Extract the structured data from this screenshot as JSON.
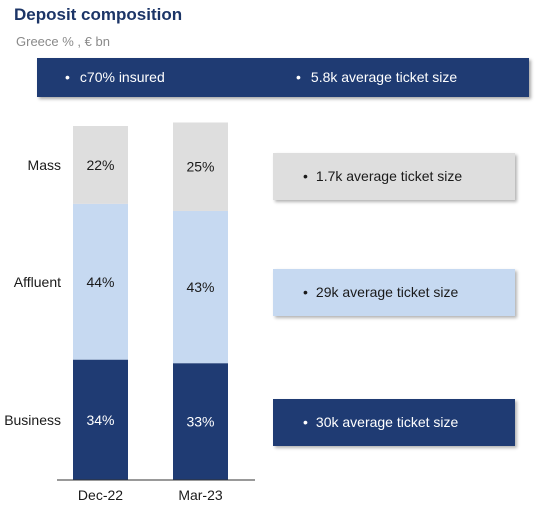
{
  "header": {
    "title": "Deposit composition",
    "subtitle": "Greece % , € bn"
  },
  "banner": {
    "items": [
      "c70% insured",
      "5.8k average ticket size"
    ]
  },
  "callouts": [
    {
      "label": "1.7k average ticket size",
      "color": "#dedede"
    },
    {
      "label": "29k average ticket size",
      "color": "#c6d9f1"
    },
    {
      "label": "30k average ticket size",
      "color": "#1f3b73"
    }
  ],
  "chart_data": {
    "type": "bar",
    "stacked": true,
    "normalized": true,
    "categories": [
      "Dec-22",
      "Mar-23"
    ],
    "series": [
      {
        "name": "Business",
        "values": [
          34,
          33
        ],
        "labels": [
          "34%",
          "33%"
        ],
        "color": "#1f3b73"
      },
      {
        "name": "Affluent",
        "values": [
          44,
          43
        ],
        "labels": [
          "44%",
          "43%"
        ],
        "color": "#c6d9f1"
      },
      {
        "name": "Mass",
        "values": [
          22,
          25
        ],
        "labels": [
          "22%",
          "25%"
        ],
        "color": "#dedede"
      }
    ],
    "ylim": [
      0,
      100
    ],
    "grid": false
  }
}
